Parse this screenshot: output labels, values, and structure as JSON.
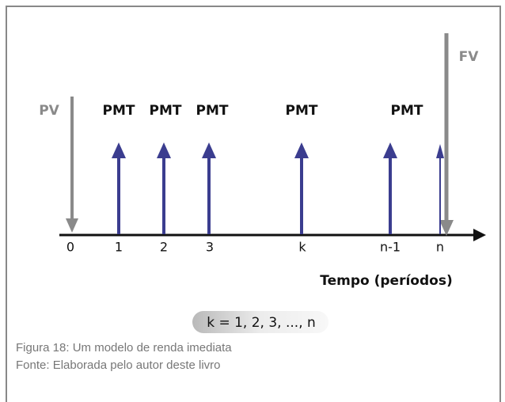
{
  "diagram": {
    "present_value": "PV",
    "future_value": "FV",
    "payments": [
      "PMT",
      "PMT",
      "PMT",
      "PMT",
      "PMT"
    ],
    "ticks": [
      "0",
      "1",
      "2",
      "3",
      "k",
      "n-1",
      "n"
    ],
    "axis_title": "Tempo (períodos)",
    "formula": "k = 1, 2, 3, ..., n"
  },
  "caption": {
    "figure": "Figura 18: Um modelo de renda imediata",
    "source": "Fonte: Elaborada pelo autor deste livro"
  }
}
